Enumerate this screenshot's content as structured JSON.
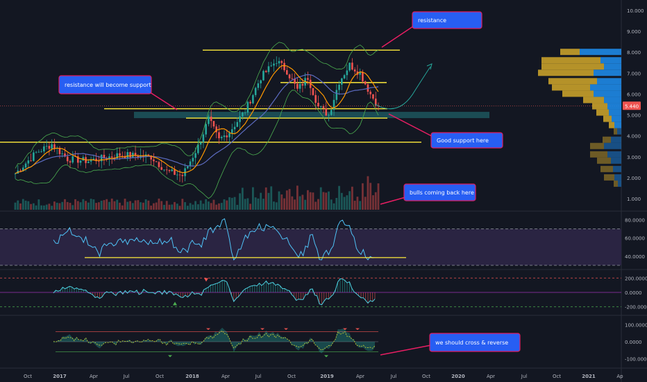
{
  "chart_data": {
    "type": "candlestick",
    "price_scale": {
      "min": 1.0,
      "max": 10.0,
      "scale": "linear",
      "ticks": [
        "10.000",
        "9.000",
        "8.000",
        "7.000",
        "6.000",
        "5.000",
        "4.000",
        "3.000",
        "2.000",
        "1.000"
      ]
    },
    "current_price_label": "5.440",
    "current_price": 5.44,
    "x_axis_labels": [
      "Oct",
      "2017",
      "Apr",
      "Jul",
      "Oct",
      "2018",
      "Apr",
      "Jul",
      "Oct",
      "2019",
      "Apr",
      "Jul",
      "Oct",
      "2020",
      "Apr",
      "Jul",
      "Oct",
      "2021",
      "Ap"
    ],
    "horizontal_levels": [
      {
        "name": "resistance-top",
        "y": 8.1,
        "color": "#ffeb3b"
      },
      {
        "name": "mid-range",
        "y": 6.55,
        "color": "#ffeb3b"
      },
      {
        "name": "support-upper",
        "y": 5.3,
        "color": "#ffeb3b"
      },
      {
        "name": "support-lower",
        "y": 4.85,
        "color": "#ffeb3b"
      },
      {
        "name": "old-resistance",
        "y": 3.7,
        "color": "#ffeb3b"
      }
    ],
    "support_zone": {
      "y_low": 4.85,
      "y_high": 5.15,
      "color": "#1f5f66"
    },
    "annotations": [
      {
        "id": "resistance",
        "text": "resistance"
      },
      {
        "id": "resistance-support",
        "text": "resistance will become support"
      },
      {
        "id": "good-support",
        "text": "Good support here"
      },
      {
        "id": "bulls",
        "text": "bulls coming back here"
      },
      {
        "id": "cross-reverse",
        "text": "we should cross & reverse"
      }
    ],
    "rsi": {
      "ticks": [
        "80.0000",
        "60.0000",
        "40.0000"
      ],
      "min": 30,
      "max": 85,
      "upper_band": 70,
      "lower_band": 30,
      "support": 38.5
    },
    "cci": {
      "ticks": [
        "200.0000",
        "0.0000",
        "-200.0000"
      ],
      "min": -280,
      "max": 280,
      "upper": 200,
      "lower": -200
    },
    "osc": {
      "ticks": [
        "100.0000",
        "0.0000",
        "-100.0000"
      ],
      "min": -140,
      "max": 140,
      "upper": 60,
      "lower": -60
    },
    "colors": {
      "up": "#26a69a",
      "down": "#ef5350",
      "level": "#ffeb3b",
      "callout_fill": "#2962ff",
      "callout_border": "#e91e63",
      "bb": "#4caf50",
      "ma_fast": "#ff9800",
      "ma_slow": "#5c6bc0",
      "rsi_line": "#4fc3f7",
      "vp_gold": "#c8a02a",
      "vp_blue": "#1e88e5"
    }
  }
}
